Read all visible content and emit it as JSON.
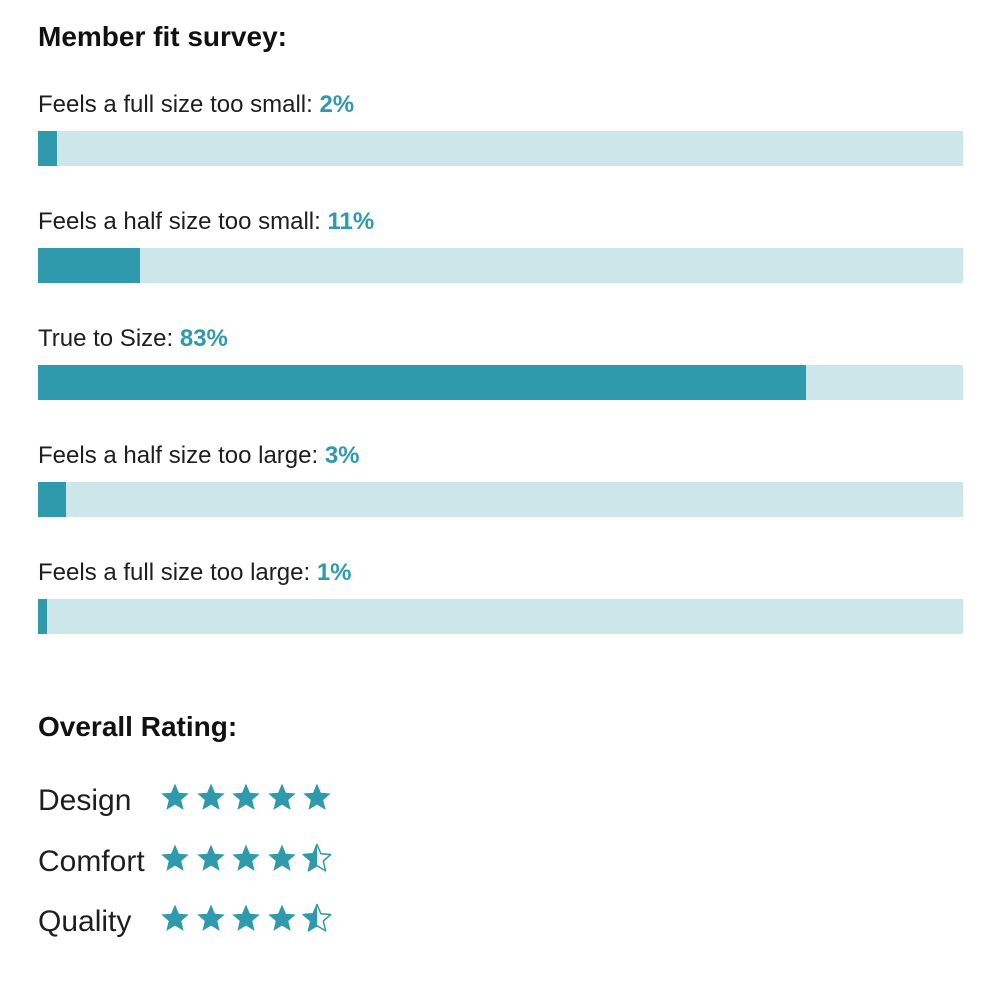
{
  "fit_survey": {
    "title": "Member fit survey:",
    "items": [
      {
        "label": "Feels a full size too small:",
        "percent_text": "2%",
        "percent": 2
      },
      {
        "label": "Feels a half size too small:",
        "percent_text": "11%",
        "percent": 11
      },
      {
        "label": "True to Size:",
        "percent_text": "83%",
        "percent": 83
      },
      {
        "label": "Feels a half size too large:",
        "percent_text": "3%",
        "percent": 3
      },
      {
        "label": "Feels a full size too large:",
        "percent_text": "1%",
        "percent": 1
      }
    ]
  },
  "overall_rating": {
    "title": "Overall Rating:",
    "max_stars": 5,
    "items": [
      {
        "label": "Design",
        "stars": 5
      },
      {
        "label": "Comfort",
        "stars": 4.5
      },
      {
        "label": "Quality",
        "stars": 4.5
      }
    ]
  },
  "colors": {
    "accent": "#2e9aab",
    "track": "#cde6ea",
    "text": "#1e1e1e"
  },
  "icons": {
    "star": "star-icon"
  }
}
